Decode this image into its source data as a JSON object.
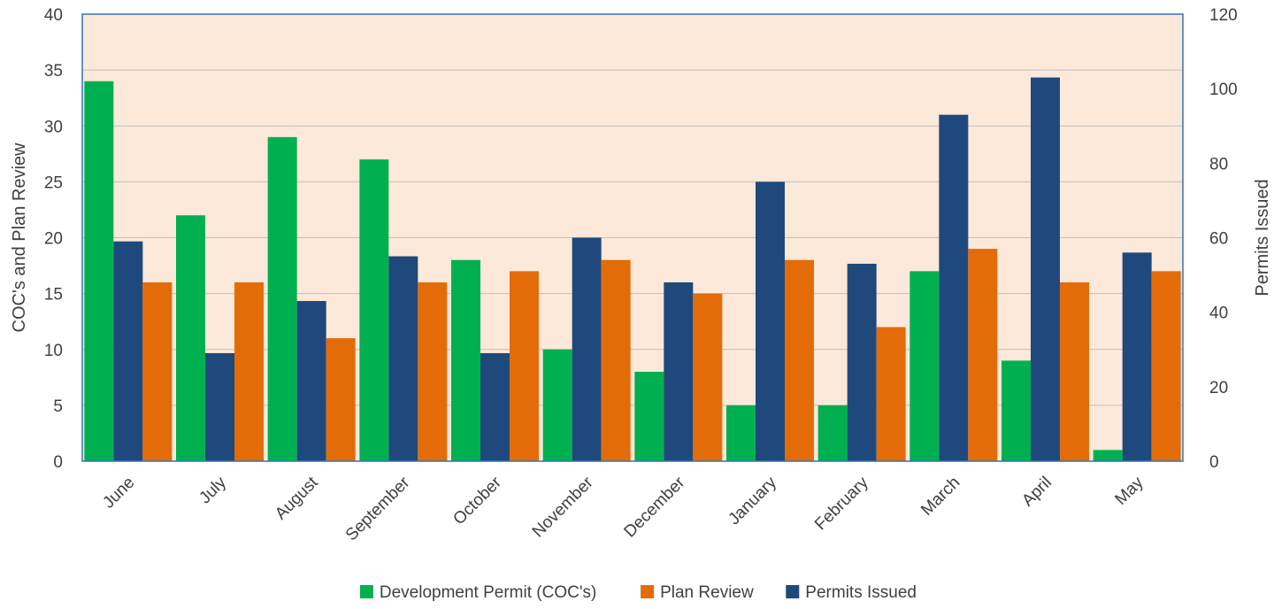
{
  "chart_data": {
    "type": "bar",
    "categories": [
      "June",
      "July",
      "August",
      "September",
      "October",
      "November",
      "December",
      "January",
      "February",
      "March",
      "April",
      "May"
    ],
    "series": [
      {
        "name": "Development Permit (COC's)",
        "axis": "left",
        "color": "#00B050",
        "values": [
          34,
          22,
          29,
          27,
          18,
          10,
          8,
          5,
          5,
          17,
          9,
          1
        ]
      },
      {
        "name": "Permits Issued",
        "axis": "right",
        "color": "#1F497D",
        "values": [
          59,
          29,
          43,
          55,
          29,
          60,
          48,
          75,
          53,
          93,
          103,
          56
        ]
      },
      {
        "name": "Plan Review",
        "axis": "left",
        "color": "#E36C09",
        "values": [
          16,
          16,
          11,
          16,
          17,
          18,
          15,
          18,
          12,
          19,
          16,
          17
        ]
      }
    ],
    "legend_order": [
      "Development Permit (COC's)",
      "Plan Review",
      "Permits Issued"
    ],
    "ylabel": "COC's and Plan Review",
    "y2label": "Permits Issued",
    "ylim": [
      0,
      40
    ],
    "yticks": [
      0,
      5,
      10,
      15,
      20,
      25,
      30,
      35,
      40
    ],
    "y2lim": [
      0,
      120
    ],
    "y2ticks": [
      0,
      20,
      40,
      60,
      80,
      100,
      120
    ],
    "plot_background": "#FDE9D9",
    "border_color": "#2E75B6",
    "grid": true,
    "grid_color": "#BFBFBF",
    "legend_position": "bottom"
  }
}
